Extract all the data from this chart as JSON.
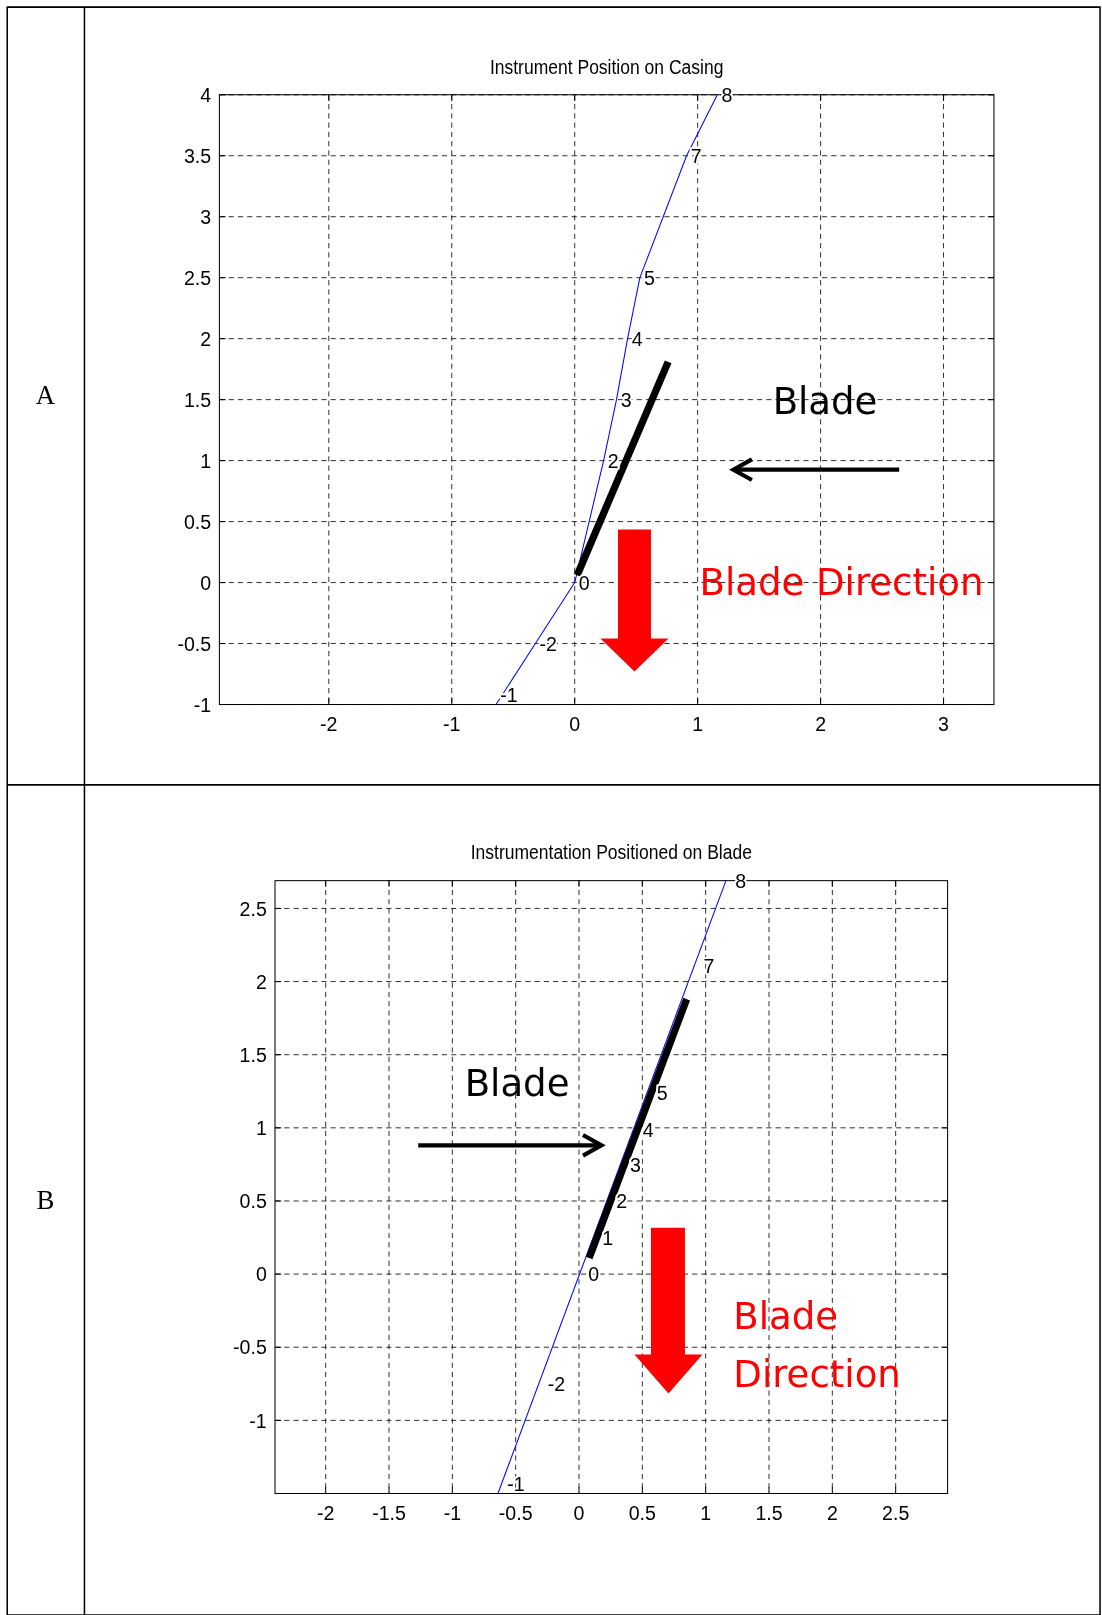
{
  "chart_data": [
    {
      "type": "line",
      "title": "Instrument Position on Casing",
      "xlim": [
        -2.89,
        3.41
      ],
      "ylim": [
        -1,
        4
      ],
      "xticks": [
        -2,
        -1,
        0,
        1,
        2,
        3
      ],
      "yticks": [
        -1,
        -0.5,
        0,
        0.5,
        1,
        1.5,
        2,
        2.5,
        3,
        3.5,
        4
      ],
      "grid": true,
      "series": [
        {
          "color": "#0000ff",
          "x": [
            -0.64,
            -0.32,
            0,
            0.235,
            0.34,
            0.43,
            0.53,
            0.91,
            1.16
          ],
          "values": [
            -1,
            -0.5,
            0,
            1,
            1.5,
            2,
            2.5,
            3.5,
            4
          ]
        },
        {
          "color": "#000000",
          "x": [
            0.02,
            0.76
          ],
          "values": [
            0.06,
            1.81
          ]
        }
      ],
      "annotations": [
        "A",
        "Blade",
        "Blade Direction",
        {
          "text": "8",
          "x": 1.16,
          "y": 4
        },
        {
          "text": "7",
          "x": 0.91,
          "y": 3.5
        },
        {
          "text": "5",
          "x": 0.53,
          "y": 2.5
        },
        {
          "text": "4",
          "x": 0.43,
          "y": 2
        },
        {
          "text": "3",
          "x": 0.34,
          "y": 1.5
        },
        {
          "text": "2",
          "x": 0.235,
          "y": 1
        },
        {
          "text": "0",
          "x": 0,
          "y": 0
        },
        {
          "text": "-2",
          "x": -0.32,
          "y": -0.5
        },
        {
          "text": "-1",
          "x": -0.64,
          "y": -1
        }
      ]
    },
    {
      "type": "line",
      "title": "Instrumentation Positioned on Blade",
      "xlim": [
        -2.4,
        2.91
      ],
      "ylim": [
        -1.5,
        2.69
      ],
      "xticks": [
        -2,
        -1.5,
        -1,
        -0.5,
        0,
        0.5,
        1,
        1.5,
        2,
        2.5
      ],
      "yticks": [
        -1,
        -0.5,
        0,
        0.5,
        1,
        1.5,
        2,
        2.5
      ],
      "grid": true,
      "series": [
        {
          "color": "#0000ff",
          "x": [
            -0.64,
            1.16
          ],
          "values": [
            -1.5,
            2.69
          ]
        },
        {
          "color": "#000000",
          "x": [
            0.08,
            0.85
          ],
          "values": [
            0.11,
            1.88
          ]
        }
      ],
      "annotations": [
        "B",
        "Blade",
        "Blade Direction",
        {
          "text": "8",
          "x": 1.16,
          "y": 2.69
        },
        {
          "text": "7",
          "x": 0.91,
          "y": 2.11
        },
        {
          "text": "5",
          "x": 0.54,
          "y": 1.24
        },
        {
          "text": "4",
          "x": 0.43,
          "y": 0.99
        },
        {
          "text": "3",
          "x": 0.33,
          "y": 0.75
        },
        {
          "text": "2",
          "x": 0.22,
          "y": 0.5
        },
        {
          "text": "1",
          "x": 0.11,
          "y": 0.25
        },
        {
          "text": "0",
          "x": 0,
          "y": 0
        },
        {
          "text": "-2",
          "x": -0.32,
          "y": -0.75
        },
        {
          "text": "-1",
          "x": -0.64,
          "y": -1.5
        }
      ]
    }
  ]
}
